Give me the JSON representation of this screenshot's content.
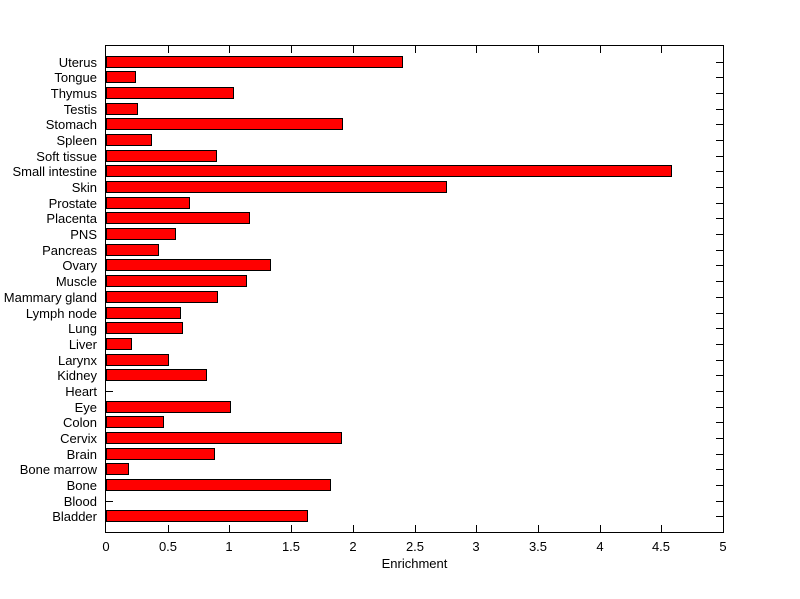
{
  "chart_data": {
    "type": "bar",
    "orientation": "horizontal",
    "title": "",
    "xlabel": "Enrichment",
    "ylabel": "",
    "xlim": [
      0,
      5
    ],
    "xticks": [
      0,
      0.5,
      1,
      1.5,
      2,
      2.5,
      3,
      3.5,
      4,
      4.5,
      5
    ],
    "xtick_labels": [
      "0",
      "0.5",
      "1",
      "1.5",
      "2",
      "2.5",
      "3",
      "3.5",
      "4",
      "4.5",
      "5"
    ],
    "grid": false,
    "legend": null,
    "bar_color": "#ff0000",
    "bar_edge_color": "#000000",
    "axis_color": "#000000",
    "background_color": "#ffffff",
    "categories": [
      "Uterus",
      "Tongue",
      "Thymus",
      "Testis",
      "Stomach",
      "Spleen",
      "Soft tissue",
      "Small intestine",
      "Skin",
      "Prostate",
      "Placenta",
      "PNS",
      "Pancreas",
      "Ovary",
      "Muscle",
      "Mammary gland",
      "Lymph node",
      "Lung",
      "Liver",
      "Larynx",
      "Kidney",
      "Heart",
      "Eye",
      "Colon",
      "Cervix",
      "Brain",
      "Bone marrow",
      "Bone",
      "Blood",
      "Bladder"
    ],
    "values": [
      2.41,
      0.24,
      1.04,
      0.26,
      1.92,
      0.37,
      0.9,
      4.59,
      2.76,
      0.68,
      1.17,
      0.57,
      0.43,
      1.34,
      1.14,
      0.91,
      0.61,
      0.62,
      0.21,
      0.51,
      0.82,
      0.0,
      1.01,
      0.47,
      1.91,
      0.88,
      0.19,
      1.82,
      0.0,
      1.64
    ]
  }
}
